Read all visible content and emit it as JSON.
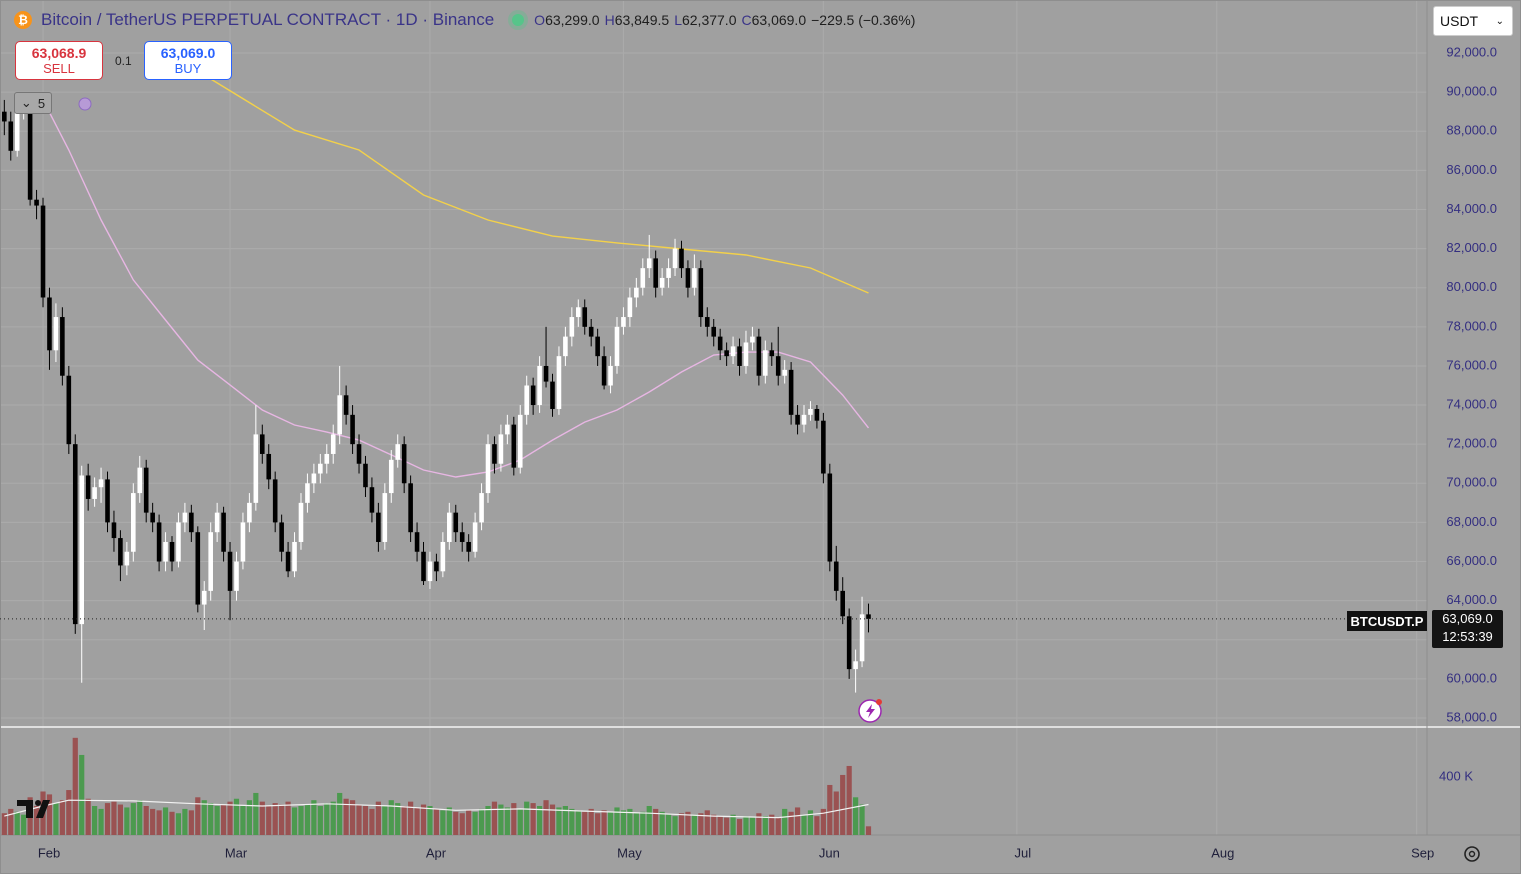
{
  "chart_data": {
    "type": "candlestick",
    "title": "Bitcoin / TetherUS PERPETUAL CONTRACT · 1D · Binance",
    "ohlc_keys": [
      "O",
      "H",
      "L",
      "C"
    ],
    "ohlc_labels": [
      "63,299.0",
      "63,849.5",
      "62,377.0",
      "63,069.0"
    ],
    "change_label": "−229.5 (−0.36%)",
    "up_color": "#ffffff",
    "down_color": "#000000",
    "vol_up_color": "#4c9a4f",
    "vol_down_color": "#9a5252",
    "xlim": [
      -0.67,
      220.6
    ],
    "xticks": [
      {
        "value": 6,
        "label": "Feb"
      },
      {
        "value": 35,
        "label": "Mar"
      },
      {
        "value": 66,
        "label": "Apr"
      },
      {
        "value": 96,
        "label": "May"
      },
      {
        "value": 127,
        "label": "Jun"
      },
      {
        "value": 157,
        "label": "Jul"
      },
      {
        "value": 188,
        "label": "Aug"
      },
      {
        "value": 219,
        "label": "Sep"
      }
    ],
    "ylim": [
      57540,
      94710
    ],
    "yticks": [
      {
        "value": 58000,
        "label": "58,000.0"
      },
      {
        "value": 60000,
        "label": "60,000.0"
      },
      {
        "value": 62000,
        "label": "62,000.0"
      },
      {
        "value": 64000,
        "label": "64,000.0"
      },
      {
        "value": 66000,
        "label": "66,000.0"
      },
      {
        "value": 68000,
        "label": "68,000.0"
      },
      {
        "value": 70000,
        "label": "70,000.0"
      },
      {
        "value": 72000,
        "label": "72,000.0"
      },
      {
        "value": 74000,
        "label": "74,000.0"
      },
      {
        "value": 76000,
        "label": "76,000.0"
      },
      {
        "value": 78000,
        "label": "78,000.0"
      },
      {
        "value": 80000,
        "label": "80,000.0"
      },
      {
        "value": 82000,
        "label": "82,000.0"
      },
      {
        "value": 84000,
        "label": "84,000.0"
      },
      {
        "value": 86000,
        "label": "86,000.0"
      },
      {
        "value": 88000,
        "label": "88,000.0"
      },
      {
        "value": 90000,
        "label": "90,000.0"
      },
      {
        "value": 92000,
        "label": "92,000.0"
      }
    ],
    "grid": true,
    "ohlc": [
      [
        89000,
        89600,
        87800,
        88500
      ],
      [
        88500,
        89000,
        86500,
        87000
      ],
      [
        87000,
        89400,
        86700,
        89000
      ],
      [
        89000,
        90000,
        88600,
        89500
      ],
      [
        89500,
        89800,
        84200,
        84500
      ],
      [
        84500,
        85000,
        83500,
        84200
      ],
      [
        84200,
        84600,
        79000,
        79500
      ],
      [
        79500,
        80000,
        75800,
        76800
      ],
      [
        76800,
        79200,
        76200,
        78500
      ],
      [
        78500,
        79000,
        75000,
        75500
      ],
      [
        75500,
        76000,
        71500,
        72000
      ],
      [
        72000,
        72500,
        62300,
        62800
      ],
      [
        62800,
        70900,
        59800,
        70400
      ],
      [
        70400,
        71000,
        68600,
        69200
      ],
      [
        69200,
        70300,
        68800,
        69800
      ],
      [
        69800,
        70800,
        69000,
        70200
      ],
      [
        70200,
        70600,
        67500,
        68000
      ],
      [
        68000,
        68600,
        66500,
        67200
      ],
      [
        67200,
        67600,
        65000,
        65800
      ],
      [
        65800,
        67000,
        65300,
        66500
      ],
      [
        66500,
        70000,
        66000,
        69500
      ],
      [
        69500,
        71400,
        69000,
        70800
      ],
      [
        70800,
        71200,
        68000,
        68500
      ],
      [
        68500,
        69000,
        67500,
        68000
      ],
      [
        68000,
        68400,
        65500,
        66000
      ],
      [
        66000,
        67500,
        65500,
        67000
      ],
      [
        67000,
        67300,
        65500,
        66000
      ],
      [
        66000,
        68500,
        65700,
        68000
      ],
      [
        68000,
        69000,
        67500,
        68500
      ],
      [
        68500,
        68900,
        67000,
        67500
      ],
      [
        67500,
        67800,
        63400,
        63800
      ],
      [
        63800,
        65000,
        62500,
        64500
      ],
      [
        64500,
        68000,
        64000,
        67500
      ],
      [
        67500,
        69000,
        67000,
        68500
      ],
      [
        68500,
        68800,
        66000,
        66500
      ],
      [
        66500,
        67000,
        63000,
        64500
      ],
      [
        64500,
        66500,
        64000,
        66000
      ],
      [
        66000,
        68500,
        65600,
        68000
      ],
      [
        68000,
        69500,
        67500,
        69000
      ],
      [
        69000,
        74000,
        68600,
        72500
      ],
      [
        72500,
        73000,
        71000,
        71500
      ],
      [
        71500,
        72000,
        69700,
        70200
      ],
      [
        70200,
        70600,
        67500,
        68000
      ],
      [
        68000,
        68400,
        66000,
        66500
      ],
      [
        66500,
        67000,
        65200,
        65500
      ],
      [
        65500,
        67500,
        65200,
        67000
      ],
      [
        67000,
        69500,
        66600,
        69000
      ],
      [
        69000,
        70500,
        68500,
        70000
      ],
      [
        70000,
        71000,
        69500,
        70500
      ],
      [
        70500,
        71500,
        70000,
        71000
      ],
      [
        71000,
        72000,
        70500,
        71500
      ],
      [
        71500,
        73000,
        71000,
        72500
      ],
      [
        72500,
        76000,
        72000,
        74500
      ],
      [
        74500,
        75000,
        73000,
        73500
      ],
      [
        73500,
        74000,
        71500,
        72000
      ],
      [
        72000,
        72500,
        70500,
        71000
      ],
      [
        71000,
        71400,
        69300,
        69800
      ],
      [
        69800,
        70300,
        68000,
        68500
      ],
      [
        68500,
        69000,
        66500,
        67000
      ],
      [
        67000,
        70000,
        66600,
        69500
      ],
      [
        69500,
        71700,
        69000,
        71200
      ],
      [
        71200,
        72500,
        70800,
        72000
      ],
      [
        72000,
        72400,
        69500,
        70000
      ],
      [
        70000,
        70400,
        67000,
        67500
      ],
      [
        67500,
        68000,
        66000,
        66500
      ],
      [
        66500,
        67000,
        64800,
        65000
      ],
      [
        65000,
        66500,
        64600,
        66000
      ],
      [
        66000,
        66400,
        65000,
        65500
      ],
      [
        65500,
        67500,
        65200,
        67000
      ],
      [
        67000,
        69000,
        66600,
        68500
      ],
      [
        68500,
        68900,
        67000,
        67500
      ],
      [
        67500,
        68000,
        66500,
        67000
      ],
      [
        67000,
        67400,
        66000,
        66500
      ],
      [
        66500,
        68500,
        66200,
        68000
      ],
      [
        68000,
        70000,
        67600,
        69500
      ],
      [
        69500,
        72500,
        69000,
        72000
      ],
      [
        72000,
        72400,
        70500,
        71000
      ],
      [
        71000,
        73000,
        70600,
        72500
      ],
      [
        72500,
        73500,
        72000,
        73000
      ],
      [
        73000,
        73400,
        70400,
        70800
      ],
      [
        70800,
        74000,
        70500,
        73500
      ],
      [
        73500,
        75500,
        73000,
        75000
      ],
      [
        75000,
        75400,
        73500,
        74000
      ],
      [
        74000,
        76500,
        73600,
        76000
      ],
      [
        76000,
        78000,
        74900,
        75200
      ],
      [
        75200,
        75600,
        73400,
        73800
      ],
      [
        73800,
        77000,
        73500,
        76500
      ],
      [
        76500,
        78000,
        76000,
        77500
      ],
      [
        77500,
        79000,
        77000,
        78500
      ],
      [
        78500,
        79400,
        78000,
        79000
      ],
      [
        79000,
        79400,
        77600,
        78000
      ],
      [
        78000,
        78400,
        77000,
        77500
      ],
      [
        77500,
        77900,
        76000,
        76500
      ],
      [
        76500,
        77000,
        74800,
        75000
      ],
      [
        75000,
        76500,
        74600,
        76000
      ],
      [
        76000,
        78500,
        75600,
        78000
      ],
      [
        78000,
        79000,
        77600,
        78500
      ],
      [
        78500,
        80000,
        78000,
        79500
      ],
      [
        79500,
        80500,
        79000,
        80000
      ],
      [
        80000,
        81500,
        79600,
        81000
      ],
      [
        81000,
        82700,
        80500,
        81500
      ],
      [
        81500,
        81900,
        79500,
        80000
      ],
      [
        80000,
        81000,
        79600,
        80500
      ],
      [
        80500,
        81500,
        80000,
        81000
      ],
      [
        81000,
        82500,
        80600,
        82000
      ],
      [
        82000,
        82400,
        80500,
        81000
      ],
      [
        81000,
        81400,
        79500,
        80000
      ],
      [
        80000,
        81700,
        79600,
        81000
      ],
      [
        81000,
        81400,
        78000,
        78500
      ],
      [
        78500,
        79000,
        77500,
        78000
      ],
      [
        78000,
        78400,
        77000,
        77500
      ],
      [
        77500,
        77900,
        76300,
        76800
      ],
      [
        76800,
        77200,
        76000,
        76500
      ],
      [
        76500,
        77500,
        76100,
        77000
      ],
      [
        77000,
        77400,
        75500,
        76000
      ],
      [
        76000,
        77800,
        75600,
        77200
      ],
      [
        77200,
        78000,
        76800,
        77500
      ],
      [
        77500,
        77900,
        75000,
        75500
      ],
      [
        75500,
        77300,
        75100,
        76800
      ],
      [
        76800,
        77200,
        76000,
        76500
      ],
      [
        76500,
        78000,
        75000,
        75500
      ],
      [
        75500,
        76300,
        75100,
        75800
      ],
      [
        75800,
        76200,
        73000,
        73500
      ],
      [
        73500,
        74000,
        72500,
        73000
      ],
      [
        73000,
        74000,
        72600,
        73500
      ],
      [
        73500,
        74200,
        73200,
        73800
      ],
      [
        73800,
        74000,
        72800,
        73200
      ],
      [
        73200,
        73600,
        70000,
        70500
      ],
      [
        70500,
        71000,
        65500,
        66000
      ],
      [
        66000,
        66800,
        64000,
        64500
      ],
      [
        64500,
        65200,
        62800,
        63200
      ],
      [
        63200,
        63600,
        60000,
        60500
      ],
      [
        60500,
        61500,
        59300,
        60900
      ],
      [
        60900,
        64200,
        60600,
        63300
      ],
      [
        63299,
        63849.5,
        62377,
        63069
      ]
    ],
    "ma_lines": [
      {
        "color": "#f3d14a",
        "x": [
          25,
          31,
          45,
          55,
          65,
          75,
          85,
          95,
          105,
          115,
          125,
          134
        ],
        "values": [
          92150,
          90875,
          88060,
          87040,
          84740,
          83460,
          82640,
          82290,
          81980,
          81670,
          81010,
          79730
        ]
      },
      {
        "color": "#e7b6e3",
        "x": [
          6,
          10,
          15,
          20,
          25,
          30,
          35,
          40,
          45,
          50,
          55,
          60,
          65,
          70,
          75,
          80,
          85,
          90,
          95,
          100,
          105,
          110,
          115,
          120,
          125,
          130,
          134
        ],
        "values": [
          89600,
          87040,
          83460,
          80400,
          78350,
          76300,
          75030,
          73750,
          72980,
          72620,
          72210,
          71450,
          70680,
          70320,
          70580,
          71190,
          72210,
          73130,
          73750,
          74670,
          75690,
          76560,
          76710,
          76710,
          76200,
          74510,
          72830
        ]
      }
    ],
    "volume": [
      150000,
      180000,
      160000,
      140000,
      260000,
      200000,
      300000,
      280000,
      220000,
      240000,
      310000,
      670000,
      552000,
      250000,
      200000,
      180000,
      220000,
      230000,
      210000,
      190000,
      220000,
      240000,
      200000,
      180000,
      170000,
      190000,
      160000,
      150000,
      180000,
      170000,
      260000,
      240000,
      220000,
      200000,
      210000,
      230000,
      250000,
      200000,
      240000,
      290000,
      230000,
      200000,
      220000,
      210000,
      230000,
      190000,
      200000,
      210000,
      240000,
      200000,
      220000,
      230000,
      290000,
      250000,
      240000,
      210000,
      200000,
      180000,
      230000,
      200000,
      240000,
      220000,
      200000,
      230000,
      190000,
      210000,
      200000,
      180000,
      170000,
      190000,
      160000,
      150000,
      170000,
      160000,
      180000,
      200000,
      230000,
      210000,
      190000,
      220000,
      180000,
      230000,
      220000,
      200000,
      240000,
      210000,
      190000,
      200000,
      180000,
      170000,
      160000,
      180000,
      150000,
      170000,
      160000,
      190000,
      170000,
      180000,
      150000,
      160000,
      200000,
      180000,
      160000,
      140000,
      130000,
      150000,
      160000,
      140000,
      150000,
      170000,
      140000,
      130000,
      120000,
      140000,
      110000,
      130000,
      120000,
      150000,
      130000,
      140000,
      120000,
      180000,
      160000,
      190000,
      140000,
      170000,
      130000,
      180000,
      345000,
      300000,
      414000,
      476000,
      260000,
      210000,
      60000
    ],
    "volume_ma": {
      "color": "#f2f2f2",
      "x": [
        0,
        6,
        10,
        20,
        30,
        40,
        50,
        60,
        70,
        80,
        90,
        100,
        110,
        120,
        127,
        134
      ],
      "values": [
        130000,
        200000,
        240000,
        235000,
        215000,
        200000,
        215000,
        200000,
        170000,
        180000,
        165000,
        150000,
        130000,
        120000,
        150000,
        210000
      ]
    },
    "vol_ylim": [
      0,
      724000
    ],
    "vol_yticks": [
      {
        "value": 400000,
        "label": "400 K"
      }
    ]
  },
  "trade_panel": {
    "sell_price": "63,068.9",
    "sell_label": "SELL",
    "quantity": "0.1",
    "buy_price": "63,069.0",
    "buy_label": "BUY"
  },
  "indicators_count": "5",
  "currency": "USDT",
  "symbol_tag": "BTCUSDT.P",
  "price_tag": "63,069.0",
  "countdown": "12:53:39"
}
